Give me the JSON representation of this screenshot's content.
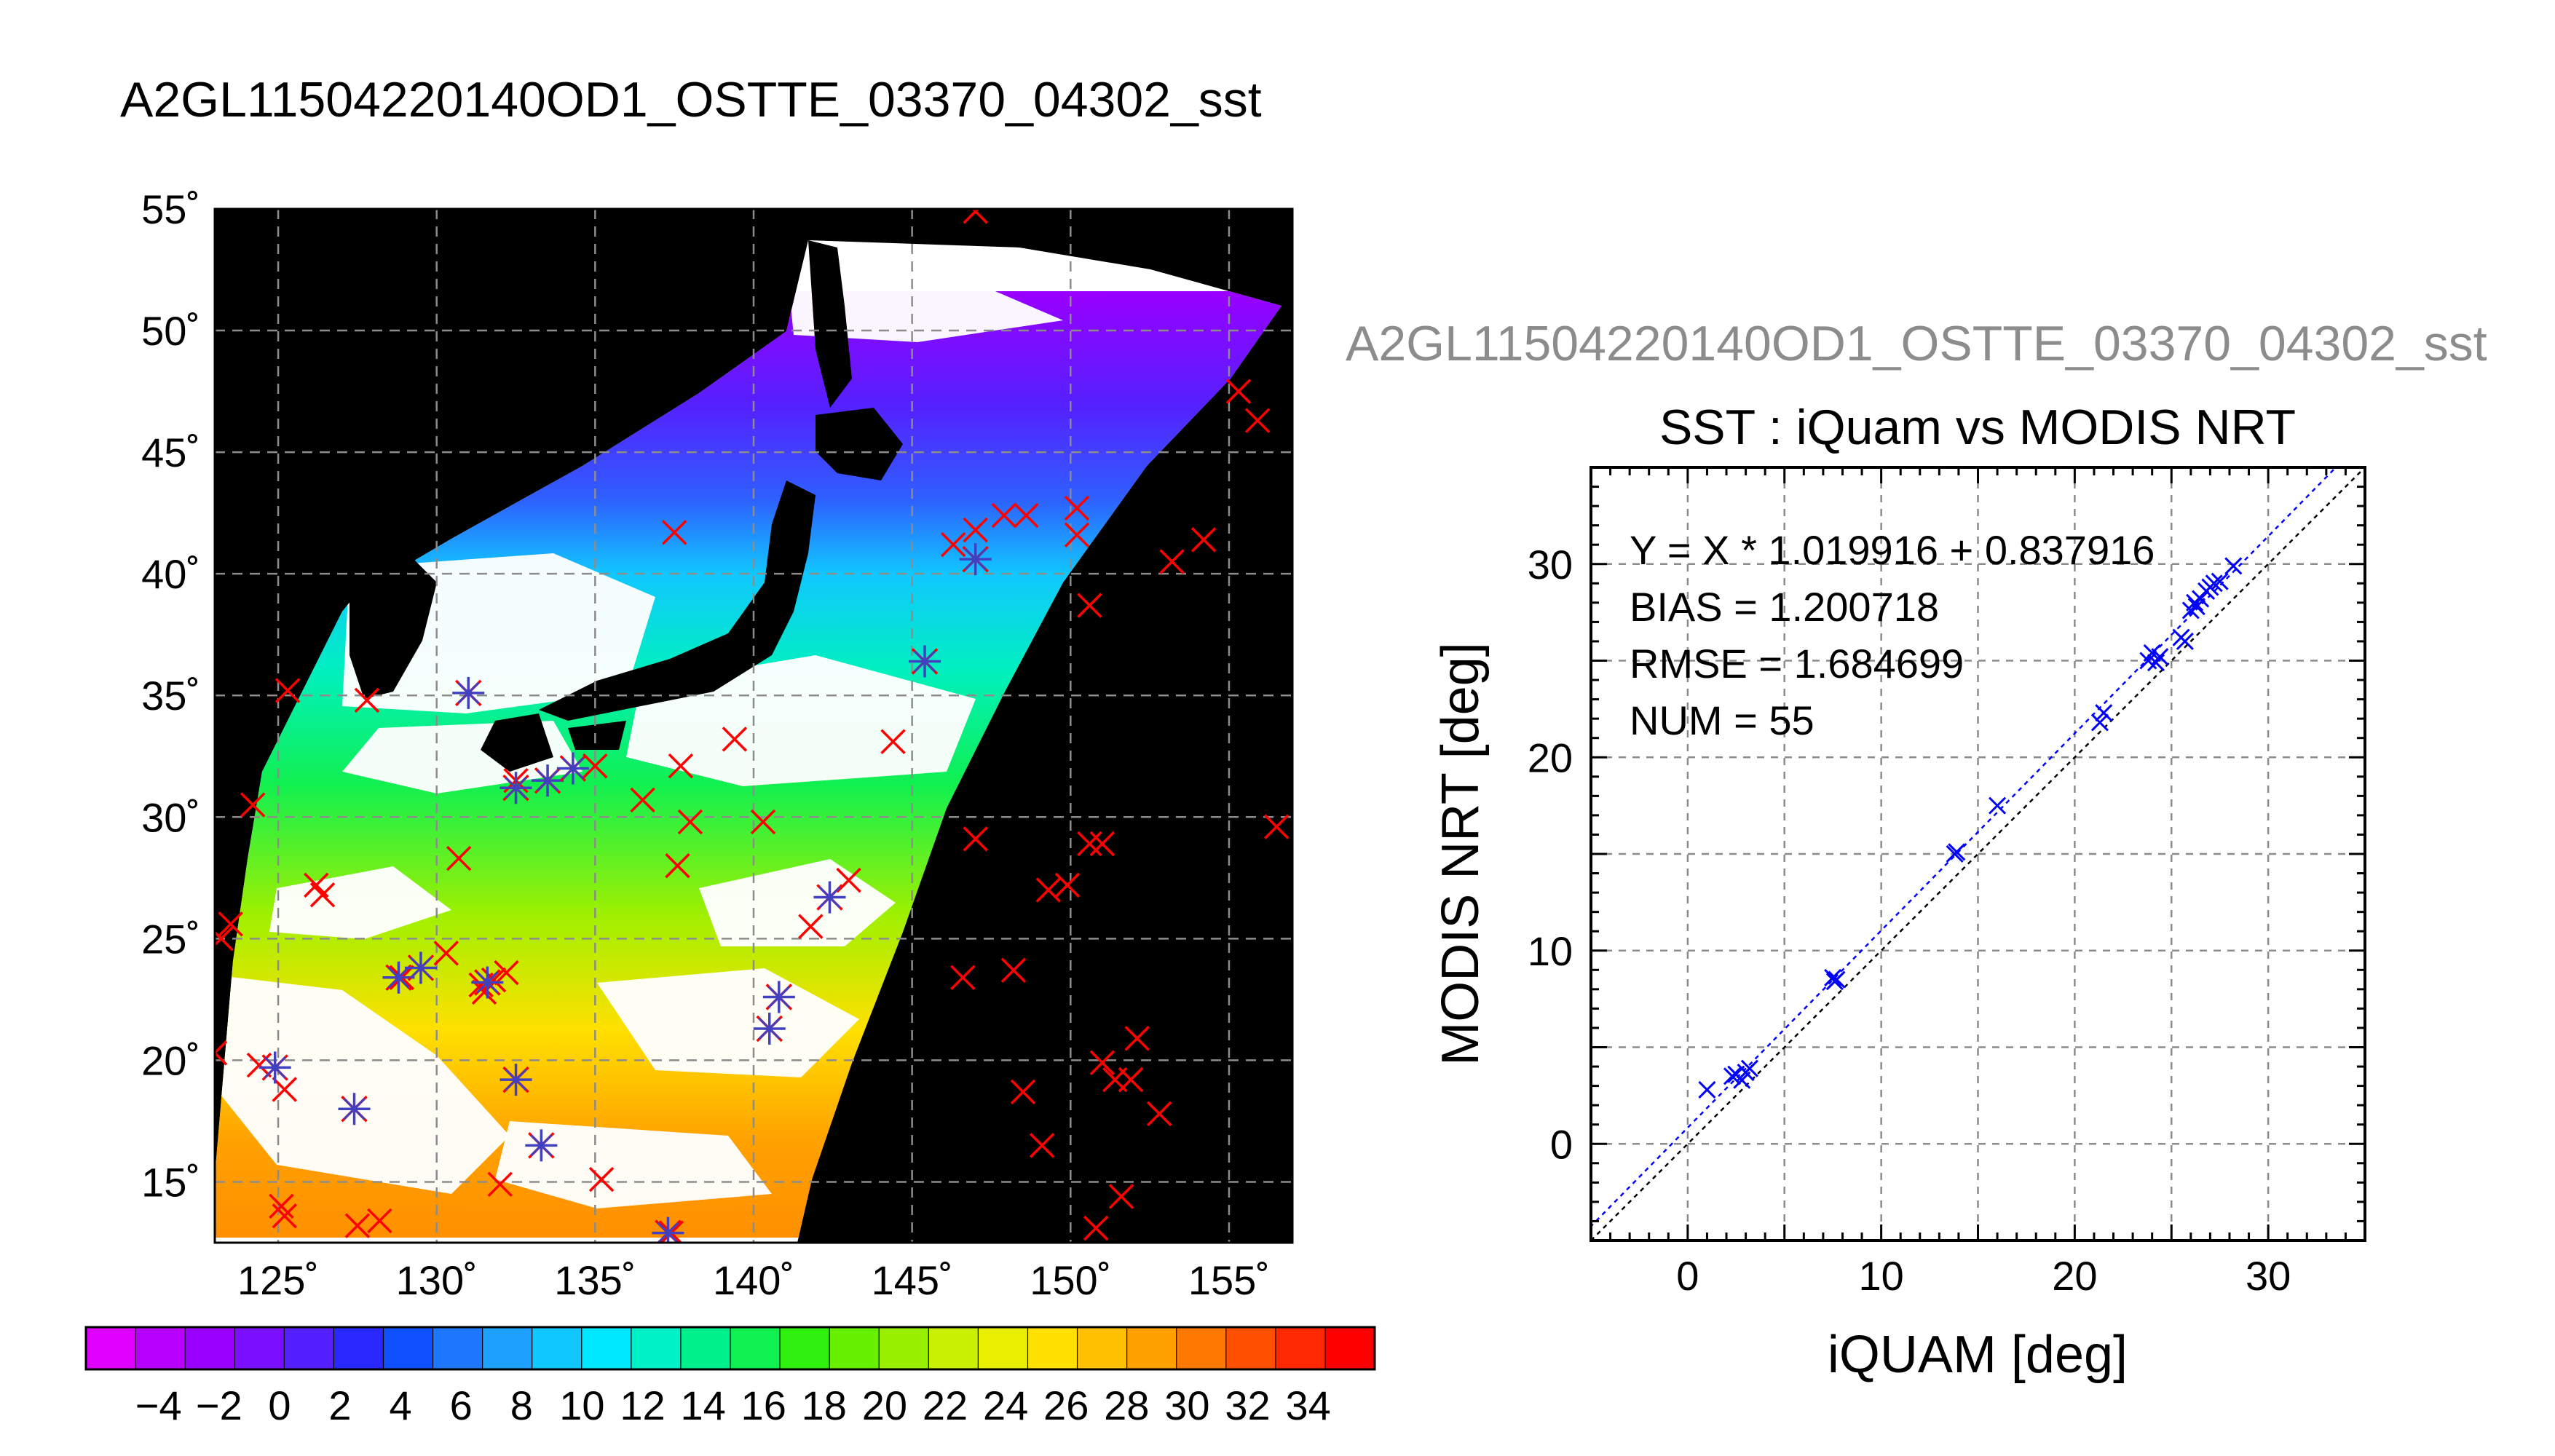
{
  "left_title": "A2GL11504220140OD1_OSTTE_03370_04302_sst",
  "right_title": "A2GL11504220140OD1_OSTTE_03370_04302_sst",
  "map": {
    "lon_ticks": [
      "125˚",
      "130˚",
      "135˚",
      "140˚",
      "145˚",
      "150˚",
      "155˚"
    ],
    "lat_ticks": [
      "55˚",
      "50˚",
      "45˚",
      "40˚",
      "35˚",
      "30˚",
      "25˚",
      "20˚",
      "15˚"
    ],
    "lon_range": [
      123,
      157
    ],
    "lat_range": [
      12.5,
      55
    ]
  },
  "colorbar": {
    "labels": [
      "−4",
      "−2",
      "0",
      "2",
      "4",
      "6",
      "8",
      "10",
      "12",
      "14",
      "16",
      "18",
      "20",
      "22",
      "24",
      "26",
      "28",
      "30",
      "32",
      "34"
    ],
    "colors": [
      "#e000ff",
      "#b800ff",
      "#9a00ff",
      "#7a10ff",
      "#5520ff",
      "#2828ff",
      "#1050ff",
      "#1e78ff",
      "#1ea0ff",
      "#10c8ff",
      "#00e8ff",
      "#00f0c8",
      "#00f08c",
      "#10f050",
      "#30f010",
      "#66f000",
      "#98f000",
      "#c8f000",
      "#e8f000",
      "#ffe000",
      "#ffc000",
      "#ffa000",
      "#ff7800",
      "#ff5000",
      "#ff2800",
      "#ff0000"
    ]
  },
  "markers": {
    "red_cross": [
      [
        147.0,
        54.9
      ],
      [
        155.3,
        47.5
      ],
      [
        155.9,
        46.3
      ],
      [
        124.2,
        30.5
      ],
      [
        123.2,
        25.0
      ],
      [
        123.5,
        25.6
      ],
      [
        123.0,
        20.3
      ],
      [
        137.5,
        41.7
      ],
      [
        147.0,
        41.8
      ],
      [
        147.9,
        42.4
      ],
      [
        148.6,
        42.4
      ],
      [
        150.2,
        41.6
      ],
      [
        150.2,
        42.7
      ],
      [
        146.3,
        41.2
      ],
      [
        153.2,
        40.5
      ],
      [
        154.2,
        41.4
      ],
      [
        150.6,
        38.7
      ],
      [
        135.0,
        32.1
      ],
      [
        137.7,
        32.1
      ],
      [
        132.5,
        31.5
      ],
      [
        133.5,
        31.5
      ],
      [
        136.5,
        30.7
      ],
      [
        138.0,
        29.8
      ],
      [
        139.4,
        33.2
      ],
      [
        140.3,
        29.8
      ],
      [
        144.4,
        33.1
      ],
      [
        147.0,
        29.1
      ],
      [
        150.6,
        28.9
      ],
      [
        151.0,
        28.9
      ],
      [
        149.3,
        27.0
      ],
      [
        149.9,
        27.2
      ],
      [
        156.5,
        29.6
      ],
      [
        126.2,
        27.2
      ],
      [
        126.4,
        26.8
      ],
      [
        130.7,
        28.3
      ],
      [
        137.6,
        28.0
      ],
      [
        143.0,
        27.4
      ],
      [
        130.3,
        24.4
      ],
      [
        128.9,
        23.4
      ],
      [
        131.4,
        23.1
      ],
      [
        132.2,
        23.6
      ],
      [
        131.8,
        23.3
      ],
      [
        131.5,
        22.8
      ],
      [
        146.6,
        23.4
      ],
      [
        148.2,
        23.7
      ],
      [
        151.0,
        19.9
      ],
      [
        151.4,
        19.2
      ],
      [
        151.9,
        19.2
      ],
      [
        152.1,
        20.9
      ],
      [
        152.8,
        17.8
      ],
      [
        148.5,
        18.7
      ],
      [
        149.1,
        16.5
      ],
      [
        124.4,
        19.8
      ],
      [
        125.2,
        18.8
      ],
      [
        125.1,
        14.0
      ],
      [
        125.2,
        13.6
      ],
      [
        127.5,
        13.2
      ],
      [
        128.2,
        13.4
      ],
      [
        132.0,
        14.9
      ],
      [
        135.2,
        15.1
      ],
      [
        137.4,
        12.9
      ],
      [
        150.8,
        13.1
      ],
      [
        151.6,
        14.4
      ],
      [
        141.8,
        25.5
      ],
      [
        125.3,
        35.2
      ],
      [
        127.8,
        34.8
      ]
    ],
    "blue_star": [
      [
        131.0,
        35.1
      ],
      [
        133.5,
        31.5
      ],
      [
        134.3,
        32.0
      ],
      [
        132.5,
        31.2
      ],
      [
        145.4,
        36.4
      ],
      [
        147.0,
        40.6
      ],
      [
        142.4,
        26.7
      ],
      [
        140.8,
        22.6
      ],
      [
        140.5,
        21.3
      ],
      [
        128.8,
        23.4
      ],
      [
        129.5,
        23.8
      ],
      [
        131.6,
        23.2
      ],
      [
        132.5,
        19.2
      ],
      [
        133.3,
        16.5
      ],
      [
        127.4,
        18.0
      ],
      [
        124.9,
        19.7
      ],
      [
        137.3,
        12.9
      ]
    ]
  },
  "scatter": {
    "title": "SST : iQuam vs MODIS NRT",
    "xlabel": "iQUAM [deg]",
    "ylabel": "MODIS NRT [deg]",
    "xlim": [
      -5,
      35
    ],
    "ylim": [
      -5,
      35
    ],
    "xticks": [
      "0",
      "10",
      "20",
      "30"
    ],
    "yticks": [
      "0",
      "10",
      "20",
      "30"
    ],
    "stats": [
      "Y = X * 1.019916 + 0.837916",
      "BIAS = 1.200718",
      "RMSE = 1.684699",
      "NUM = 55"
    ],
    "fit": {
      "slope": 1.019916,
      "intercept": 0.837916
    }
  },
  "chart_data": {
    "type": "scatter",
    "title": "SST : iQuam vs MODIS NRT",
    "xlabel": "iQUAM [deg]",
    "ylabel": "MODIS NRT [deg]",
    "xlim": [
      -5,
      35
    ],
    "ylim": [
      -5,
      35
    ],
    "grid": true,
    "x": [
      1.0,
      2.3,
      2.5,
      2.8,
      3.0,
      3.2,
      7.5,
      7.6,
      7.7,
      13.8,
      13.9,
      16.0,
      21.3,
      21.5,
      23.8,
      24.0,
      24.2,
      24.4,
      25.5,
      25.7,
      26.0,
      26.2,
      26.3,
      26.5,
      26.8,
      27.0,
      27.2,
      27.5,
      28.2
    ],
    "y": [
      2.8,
      3.5,
      3.6,
      3.3,
      3.7,
      3.9,
      8.6,
      8.4,
      8.5,
      15.0,
      15.1,
      17.5,
      21.8,
      22.3,
      25.0,
      25.4,
      24.9,
      25.2,
      26.2,
      26.0,
      27.6,
      28.0,
      27.8,
      28.2,
      28.6,
      28.8,
      29.0,
      29.1,
      29.9
    ]
  }
}
